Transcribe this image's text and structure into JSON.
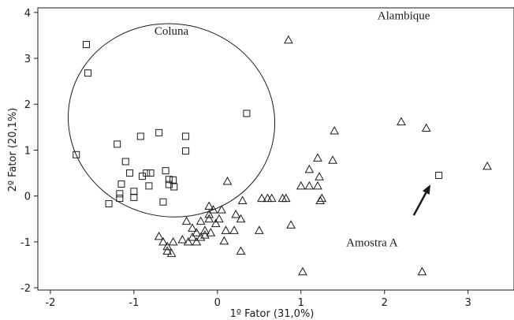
{
  "chart_data": {
    "type": "scatter",
    "title": "",
    "xlabel": "1º Fator (31,0%)",
    "ylabel": "2º Fator (20,1%)",
    "xlim": [
      -2.15,
      3.55
    ],
    "ylim": [
      -2.05,
      4.1
    ],
    "xticks": [
      -2,
      -1,
      0,
      1,
      2,
      3
    ],
    "yticks": [
      -2,
      -1,
      0,
      1,
      2,
      3,
      4
    ],
    "grid": false,
    "series": [
      {
        "name": "Coluna",
        "marker": "square",
        "points": [
          [
            -1.57,
            3.3
          ],
          [
            -1.55,
            2.68
          ],
          [
            -1.69,
            0.9
          ],
          [
            -1.2,
            1.13
          ],
          [
            -0.92,
            1.3
          ],
          [
            -0.7,
            1.38
          ],
          [
            -0.38,
            1.3
          ],
          [
            -0.38,
            0.98
          ],
          [
            0.35,
            1.8
          ],
          [
            -1.1,
            0.75
          ],
          [
            -1.05,
            0.5
          ],
          [
            -0.85,
            0.5
          ],
          [
            -0.8,
            0.5
          ],
          [
            -0.9,
            0.43
          ],
          [
            -1.15,
            0.26
          ],
          [
            -0.82,
            0.22
          ],
          [
            -1.0,
            0.1
          ],
          [
            -1.17,
            0.05
          ],
          [
            -1.17,
            -0.05
          ],
          [
            -1.3,
            -0.17
          ],
          [
            -1.0,
            -0.03
          ],
          [
            -0.62,
            0.55
          ],
          [
            -0.58,
            0.36
          ],
          [
            -0.53,
            0.35
          ],
          [
            -0.58,
            0.25
          ],
          [
            -0.52,
            0.2
          ],
          [
            -0.65,
            -0.13
          ],
          [
            2.65,
            0.45
          ]
        ]
      },
      {
        "name": "Alambique",
        "marker": "triangle",
        "points": [
          [
            0.85,
            3.4
          ],
          [
            2.2,
            1.62
          ],
          [
            2.5,
            1.48
          ],
          [
            1.4,
            1.42
          ],
          [
            3.23,
            0.65
          ],
          [
            1.2,
            0.83
          ],
          [
            1.1,
            0.58
          ],
          [
            1.38,
            0.78
          ],
          [
            1.22,
            0.42
          ],
          [
            1.0,
            0.22
          ],
          [
            1.1,
            0.22
          ],
          [
            1.2,
            0.22
          ],
          [
            1.25,
            -0.05
          ],
          [
            1.23,
            -0.1
          ],
          [
            0.6,
            -0.05
          ],
          [
            0.65,
            -0.05
          ],
          [
            0.78,
            -0.05
          ],
          [
            0.82,
            -0.05
          ],
          [
            0.53,
            -0.05
          ],
          [
            0.3,
            -0.1
          ],
          [
            0.12,
            0.32
          ],
          [
            -0.1,
            -0.22
          ],
          [
            -0.05,
            -0.3
          ],
          [
            -0.1,
            -0.4
          ],
          [
            -0.1,
            -0.5
          ],
          [
            0.05,
            -0.3
          ],
          [
            0.02,
            -0.5
          ],
          [
            0.22,
            -0.4
          ],
          [
            0.28,
            -0.5
          ],
          [
            0.88,
            -0.63
          ],
          [
            0.5,
            -0.75
          ],
          [
            -0.37,
            -0.55
          ],
          [
            -0.3,
            -0.7
          ],
          [
            -0.2,
            -0.55
          ],
          [
            -0.15,
            -0.75
          ],
          [
            -0.08,
            -0.8
          ],
          [
            -0.02,
            -0.6
          ],
          [
            0.1,
            -0.75
          ],
          [
            -0.7,
            -0.88
          ],
          [
            -0.65,
            -1.0
          ],
          [
            -0.6,
            -1.1
          ],
          [
            -0.6,
            -1.2
          ],
          [
            -0.55,
            -1.25
          ],
          [
            -0.53,
            -1.0
          ],
          [
            -0.42,
            -0.95
          ],
          [
            -0.35,
            -1.0
          ],
          [
            -0.3,
            -0.9
          ],
          [
            -0.25,
            -0.8
          ],
          [
            -0.2,
            -0.9
          ],
          [
            -0.25,
            -1.0
          ],
          [
            -0.15,
            -0.85
          ],
          [
            0.08,
            -0.98
          ],
          [
            0.2,
            -0.75
          ],
          [
            0.28,
            -1.2
          ],
          [
            1.02,
            -1.65
          ],
          [
            2.45,
            -1.65
          ]
        ]
      }
    ],
    "annotations": [
      {
        "text": "Coluna",
        "x": -0.55,
        "y": 3.52
      },
      {
        "text": "Alambique",
        "x": 2.23,
        "y": 3.85
      },
      {
        "text": "Amostra A",
        "x": 1.85,
        "y": -1.1
      }
    ],
    "arrow": {
      "from": [
        2.35,
        -0.42
      ],
      "to": [
        2.55,
        0.25
      ]
    },
    "ellipse": {
      "center": [
        -0.55,
        1.65
      ],
      "rx": 1.24,
      "ry": 2.1,
      "rotation": 12
    }
  }
}
